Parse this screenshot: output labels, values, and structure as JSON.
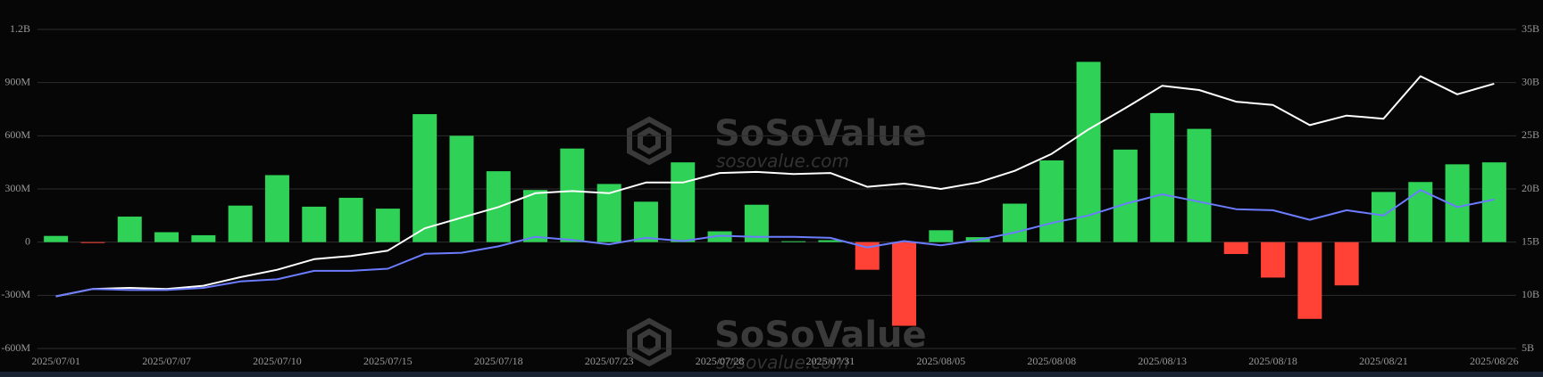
{
  "chart_data": {
    "type": "bar",
    "categories": [
      "2025/07/01",
      null,
      null,
      "2025/07/07",
      null,
      null,
      "2025/07/10",
      null,
      null,
      "2025/07/15",
      null,
      null,
      "2025/07/18",
      null,
      null,
      "2025/07/23",
      null,
      null,
      "2025/07/28",
      null,
      null,
      "2025/07/31",
      null,
      null,
      "2025/08/05",
      null,
      null,
      "2025/08/08",
      null,
      null,
      "2025/08/13",
      null,
      null,
      "2025/08/18",
      null,
      null,
      "2025/08/21",
      null,
      null,
      "2025/08/26"
    ],
    "series": [
      {
        "type": "bar",
        "color": "#2fd157",
        "negative_color": "#ff4136",
        "values": [
          35,
          -1,
          144,
          56,
          39,
          206,
          378,
          200,
          250,
          189,
          722,
          600,
          400,
          294,
          528,
          328,
          228,
          450,
          61,
          211,
          5,
          11,
          -156,
          -472,
          67,
          28,
          217,
          461,
          1017,
          522,
          728,
          639,
          -67,
          -200,
          -433,
          -244,
          283,
          339,
          439,
          450
        ]
      },
      {
        "type": "line",
        "axis": "y2",
        "color": "#ffffff",
        "values": [
          9.9,
          10.6,
          10.7,
          10.6,
          10.9,
          11.7,
          12.4,
          13.4,
          13.7,
          14.2,
          16.3,
          17.3,
          18.3,
          19.6,
          19.8,
          19.6,
          20.6,
          20.6,
          21.5,
          21.6,
          21.4,
          21.5,
          20.2,
          20.5,
          20.0,
          20.6,
          21.7,
          23.3,
          25.6,
          27.6,
          29.7,
          29.3,
          28.2,
          27.9,
          26.0,
          26.9,
          26.6,
          30.6,
          28.9,
          29.9
        ]
      },
      {
        "type": "line",
        "axis": "y2",
        "color": "#6b7cff",
        "values": [
          9.9,
          10.6,
          10.5,
          10.5,
          10.7,
          11.3,
          11.5,
          12.3,
          12.3,
          12.5,
          13.9,
          14.0,
          14.6,
          15.5,
          15.2,
          14.8,
          15.4,
          15.1,
          15.6,
          15.5,
          15.5,
          15.4,
          14.5,
          15.1,
          14.7,
          15.2,
          15.9,
          16.8,
          17.5,
          18.6,
          19.5,
          18.8,
          18.1,
          18.0,
          17.1,
          18.0,
          17.5,
          19.9,
          18.3,
          19.0
        ]
      }
    ],
    "ylim": [
      -600,
      1200
    ],
    "yticks": [
      {
        "value": -600,
        "label": "-600M"
      },
      {
        "value": -300,
        "label": "-300M"
      },
      0,
      {
        "value": 300,
        "label": "300M"
      },
      {
        "value": 600,
        "label": "600M"
      },
      {
        "value": 900,
        "label": "900M"
      },
      {
        "value": 1200,
        "label": "1.2B"
      }
    ],
    "y2lim": [
      5,
      35
    ],
    "y2ticks": [
      {
        "value": 5,
        "label": "5B"
      },
      {
        "value": 10,
        "label": "10B"
      },
      {
        "value": 15,
        "label": "15B"
      },
      {
        "value": 20,
        "label": "20B"
      },
      {
        "value": 25,
        "label": "25B"
      },
      {
        "value": 30,
        "label": "30B"
      },
      {
        "value": 35,
        "label": "35B"
      }
    ],
    "grid": true,
    "watermark": [
      "SoSoValue",
      "sosovalue.com"
    ]
  }
}
